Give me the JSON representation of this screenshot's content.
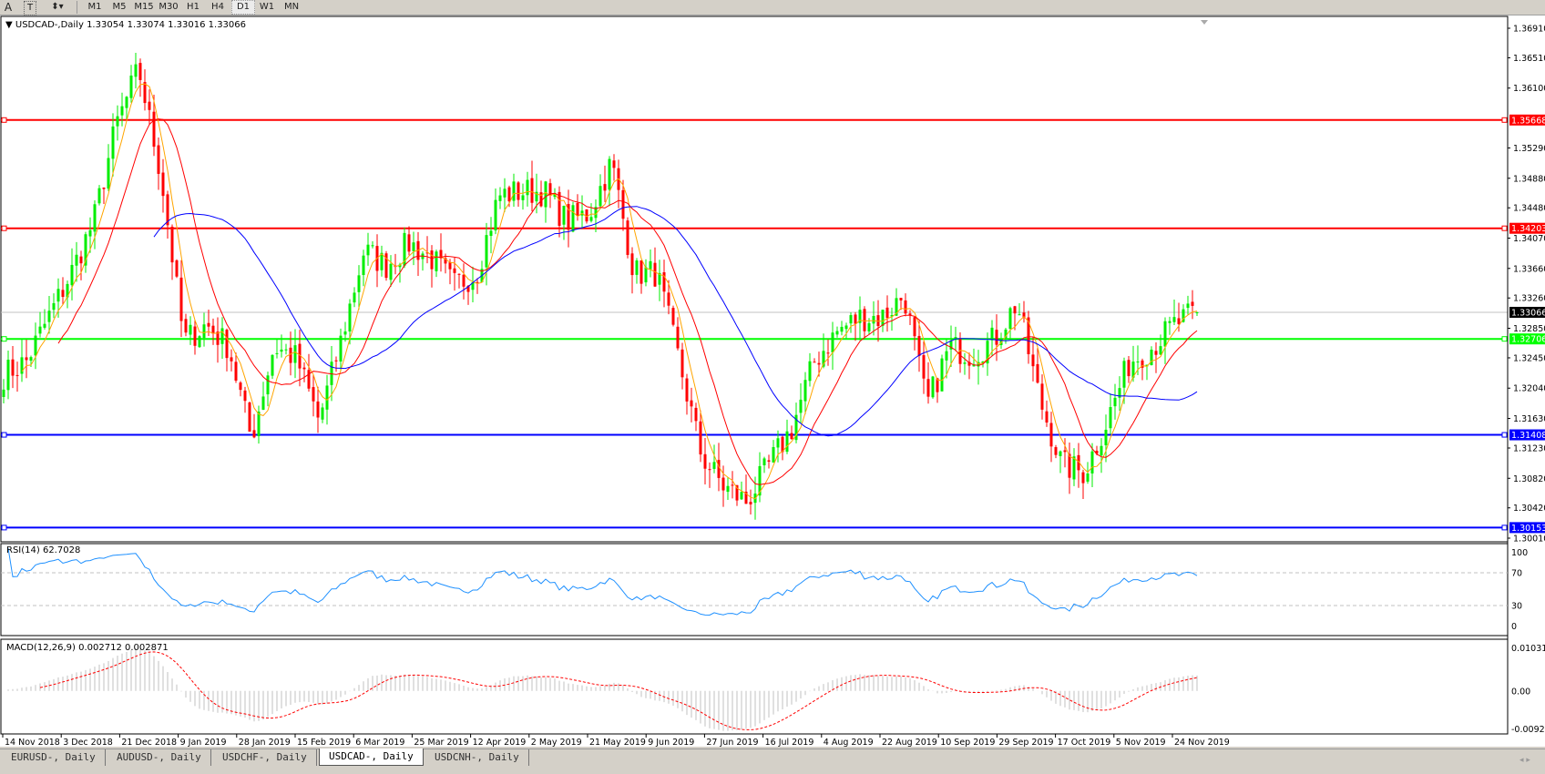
{
  "toolbar": {
    "tools": [
      "A",
      "T"
    ],
    "timeframes": [
      "M1",
      "M5",
      "M15",
      "M30",
      "H1",
      "H4",
      "D1",
      "W1",
      "MN"
    ],
    "active_timeframe": "D1"
  },
  "header": {
    "symbol": "USDCAD-,Daily",
    "ohlc": "1.33054 1.33074 1.33016 1.33066"
  },
  "rsi": {
    "label": "RSI(14) 62.7028",
    "ticks": [
      "100",
      "70",
      "30",
      "0"
    ],
    "levels": [
      70,
      30
    ]
  },
  "macd": {
    "label": "MACD(12,26,9) 0.002712 0.002871",
    "ticks": [
      "0.010311",
      "0.00",
      "-0.00920"
    ],
    "max": 0.010311,
    "min": -0.0092
  },
  "tabs": [
    "EURUSD-, Daily",
    "AUDUSD-, Daily",
    "USDCHF-, Daily",
    "USDCAD-, Daily",
    "USDCNH-, Daily"
  ],
  "active_tab": 3,
  "colors": {
    "bull": "#00ee00",
    "bear": "#ff0000",
    "ma_fast": "#ffa500",
    "ma_mid": "#ff0000",
    "ma_slow": "#0000ff",
    "rsi": "#1e90ff",
    "macd_hist": "#c0c0c0",
    "macd_signal": "#ff0000"
  },
  "chart_data": {
    "type": "candlestick",
    "symbol": "USDCAD-",
    "timeframe": "Daily",
    "ylim": [
      1.3001,
      1.3691
    ],
    "y_ticks": [
      "1.36910",
      "1.36510",
      "1.36100",
      "1.35290",
      "1.34880",
      "1.34480",
      "1.34070",
      "1.33660",
      "1.33260",
      "1.32850",
      "1.32450",
      "1.32040",
      "1.31630",
      "1.31230",
      "1.30820",
      "1.30420",
      "1.30010"
    ],
    "x_tick_labels": [
      "14 Nov 2018",
      "3 Dec 2018",
      "21 Dec 2018",
      "9 Jan 2019",
      "28 Jan 2019",
      "15 Feb 2019",
      "6 Mar 2019",
      "25 Mar 2019",
      "12 Apr 2019",
      "2 May 2019",
      "21 May 2019",
      "9 Jun 2019",
      "27 Jun 2019",
      "16 Jul 2019",
      "4 Aug 2019",
      "22 Aug 2019",
      "10 Sep 2019",
      "29 Sep 2019",
      "17 Oct 2019",
      "5 Nov 2019",
      "24 Nov 2019"
    ],
    "weekly_closes": [
      1.3222,
      1.324,
      1.33,
      1.336,
      1.343,
      1.356,
      1.3636,
      1.349,
      1.3268,
      1.329,
      1.326,
      1.3135,
      1.326,
      1.3245,
      1.316,
      1.327,
      1.339,
      1.337,
      1.34,
      1.338,
      1.3343,
      1.336,
      1.3465,
      1.347,
      1.347,
      1.343,
      1.344,
      1.351,
      1.336,
      1.336,
      1.324,
      1.3112,
      1.307,
      1.305,
      1.31,
      1.315,
      1.324,
      1.328,
      1.33,
      1.33,
      1.333,
      1.318,
      1.326,
      1.325,
      1.327,
      1.332,
      1.319,
      1.31,
      1.309,
      1.316,
      1.324,
      1.326,
      1.329,
      1.33066
    ],
    "last_bar": {
      "open": 1.33054,
      "high": 1.33074,
      "low": 1.33016,
      "close": 1.33066
    },
    "current_price": {
      "value": 1.33066,
      "label": "1.33066"
    },
    "horizontal_lines": [
      {
        "value": 1.35668,
        "label": "1.35668",
        "color": "#ff0000"
      },
      {
        "value": 1.34203,
        "label": "1.34203",
        "color": "#ff0000"
      },
      {
        "value": 1.32706,
        "label": "1.32706",
        "color": "#00ff00"
      },
      {
        "value": 1.31408,
        "label": "1.31408",
        "color": "#0000ff"
      },
      {
        "value": 1.30153,
        "label": "1.30153",
        "color": "#0000ff"
      }
    ]
  }
}
